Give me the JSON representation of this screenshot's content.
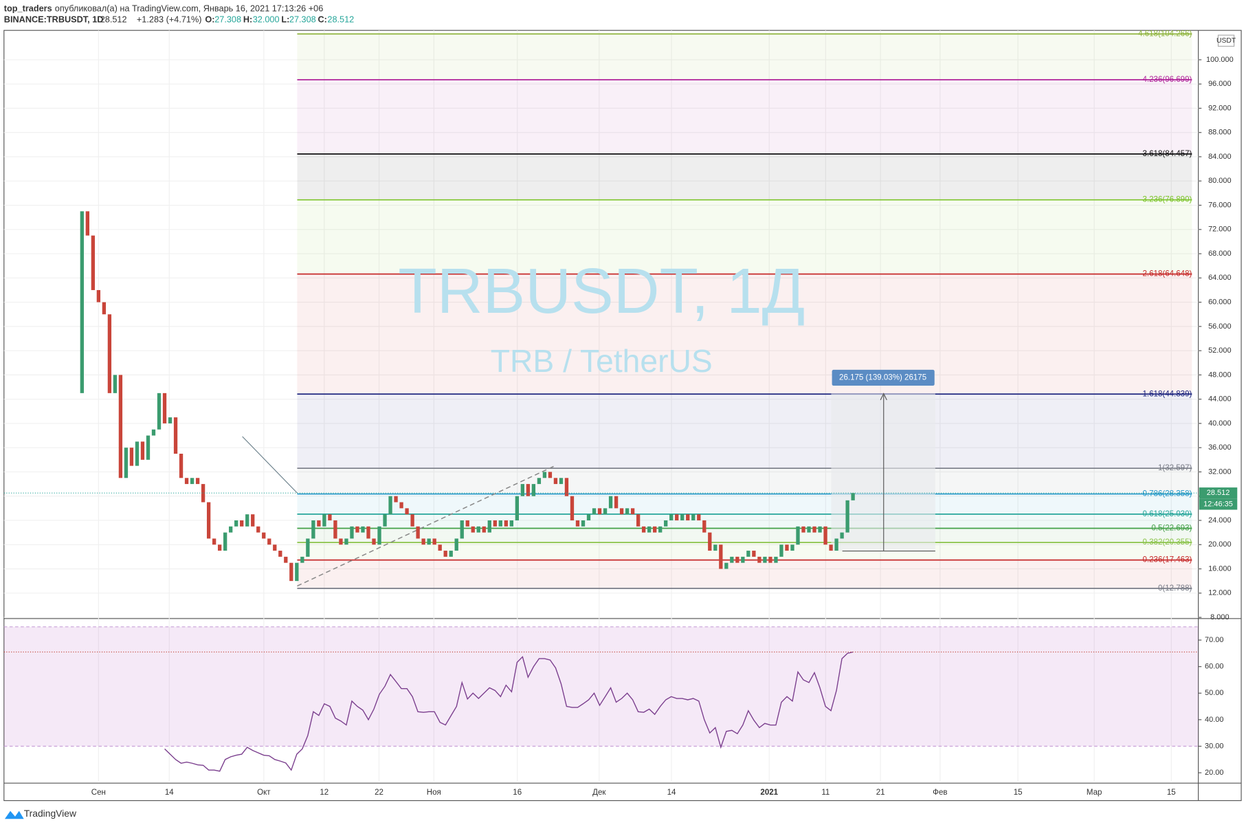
{
  "header": {
    "publisher": "top_traders",
    "published_text": "опубликовал(а) на TradingView.com, Январь 16, 2021 17:13:26 +06",
    "symbol": "BINANCE:TRBUSDT, 1D",
    "price": "28.512",
    "change": "+1.283 (+4.71%)",
    "o_label": "O:",
    "o": "27.308",
    "h_label": "H:",
    "h": "32.000",
    "l_label": "L:",
    "l": "27.308",
    "c_label": "C:",
    "c": "28.512"
  },
  "watermark": {
    "symbol": "TRBUSDT, 1Д",
    "description": "TRB / TetherUS"
  },
  "currency": "USDT",
  "price_label": "28.512",
  "countdown": "12:46:35",
  "measure_label": "26.175 (139.03%) 26175",
  "footer": "TradingView",
  "price_axis": {
    "ylim": [
      7.93,
      104.85
    ],
    "ticks": [
      {
        "value": 8,
        "label": "8.000"
      },
      {
        "value": 12,
        "label": "12.000"
      },
      {
        "value": 16,
        "label": "16.000"
      },
      {
        "value": 20,
        "label": "20.000"
      },
      {
        "value": 24,
        "label": "24.000"
      },
      {
        "value": 28,
        "label": "28.000"
      },
      {
        "value": 32,
        "label": "32.000"
      },
      {
        "value": 36,
        "label": "36.000"
      },
      {
        "value": 40,
        "label": "40.000"
      },
      {
        "value": 44,
        "label": "44.000"
      },
      {
        "value": 48,
        "label": "48.000"
      },
      {
        "value": 52,
        "label": "52.000"
      },
      {
        "value": 56,
        "label": "56.000"
      },
      {
        "value": 60,
        "label": "60.000"
      },
      {
        "value": 64,
        "label": "64.000"
      },
      {
        "value": 68,
        "label": "68.000"
      },
      {
        "value": 72,
        "label": "72.000"
      },
      {
        "value": 76,
        "label": "76.000"
      },
      {
        "value": 80,
        "label": "80.000"
      },
      {
        "value": 84,
        "label": "84.000"
      },
      {
        "value": 88,
        "label": "88.000"
      },
      {
        "value": 92,
        "label": "92.000"
      },
      {
        "value": 96,
        "label": "96.000"
      },
      {
        "value": 100,
        "label": "100.000"
      }
    ]
  },
  "fib_levels": [
    {
      "label": "0(12.788)",
      "value": 12.788,
      "color": "#787b86"
    },
    {
      "label": "0.236(17.463)",
      "value": 17.463,
      "color": "#c62828"
    },
    {
      "label": "0.382(20.355)",
      "value": 20.355,
      "color": "#8bc34a"
    },
    {
      "label": "0.5(22.693)",
      "value": 22.693,
      "color": "#43a047"
    },
    {
      "label": "0.618(25.030)",
      "value": 25.03,
      "color": "#26a69a"
    },
    {
      "label": "0.786(28.358)",
      "value": 28.358,
      "color": "#2196c8"
    },
    {
      "label": "1(32.597)",
      "value": 32.597,
      "color": "#787b86"
    },
    {
      "label": "1.618(44.839)",
      "value": 44.839,
      "color": "#1a237e"
    },
    {
      "label": "2.618(64.648)",
      "value": 64.648,
      "color": "#c62828"
    },
    {
      "label": "3.236(76.890)",
      "value": 76.89,
      "color": "#7cc42a"
    },
    {
      "label": "3.618(84.457)",
      "value": 84.457,
      "color": "#111111"
    },
    {
      "label": "4.236(96.699)",
      "value": 96.699,
      "color": "#b0249a"
    },
    {
      "label": "4.618(104.266)",
      "value": 104.266,
      "color": "#8db33a"
    }
  ],
  "candles": {
    "first_open": 45,
    "up_color": "#3b9c6f",
    "down_color": "#c9453a",
    "closes": [
      75,
      71,
      62,
      60,
      58,
      45,
      48,
      31,
      36,
      33,
      37,
      34,
      38,
      39,
      45,
      40,
      41,
      35,
      31,
      30,
      31,
      30,
      27,
      21,
      20,
      19,
      22,
      23,
      24,
      23,
      25,
      23,
      22,
      21,
      20,
      19,
      18,
      17,
      14,
      17,
      18,
      21,
      24,
      23,
      25,
      24,
      21,
      20,
      21,
      23,
      22,
      23,
      21,
      20,
      23,
      25,
      28,
      27,
      26,
      25,
      23,
      21,
      20,
      21,
      20,
      19,
      18,
      19,
      21,
      24,
      23,
      22,
      23,
      22,
      24,
      23,
      24,
      23,
      24,
      28,
      30,
      28,
      30,
      31,
      32,
      31,
      30,
      31,
      28,
      24,
      23,
      24,
      25,
      26,
      25,
      26,
      28,
      26,
      25,
      26,
      25,
      23,
      22,
      23,
      22,
      23,
      24,
      25,
      24,
      25,
      24,
      25,
      24,
      22,
      19,
      20,
      16,
      17,
      18,
      17,
      18,
      19,
      18,
      17,
      18,
      17,
      18,
      20,
      19,
      20,
      23,
      22,
      23,
      22,
      23,
      20,
      19,
      21,
      22,
      27.308,
      28.512
    ]
  },
  "rsi": {
    "ylim": [
      16.7,
      77.8
    ],
    "band": [
      30,
      75
    ],
    "color": "#7b3f8e",
    "ticks": [
      {
        "value": 20,
        "label": "20.00"
      },
      {
        "value": 30,
        "label": "30.00"
      },
      {
        "value": 40,
        "label": "40.00"
      },
      {
        "value": 50,
        "label": "50.00"
      },
      {
        "value": 60,
        "label": "60.00"
      },
      {
        "value": 70,
        "label": "70.00"
      }
    ],
    "values": [
      29,
      27,
      25,
      23.6,
      24,
      23.6,
      23,
      22.8,
      21,
      21,
      20.6,
      25,
      26,
      26.6,
      27,
      29.6,
      28.4,
      27.5,
      26.6,
      26.4,
      25,
      24.4,
      23.7,
      21,
      27,
      29,
      34,
      43,
      41.6,
      46,
      45,
      40.6,
      39.5,
      38,
      47,
      45,
      43.6,
      40,
      44,
      49.6,
      52.6,
      57,
      54.4,
      51.7,
      51.7,
      48.7,
      43,
      42.8,
      43,
      43,
      39,
      38,
      41.5,
      45,
      54,
      47.8,
      50,
      48,
      50,
      52,
      51,
      48.7,
      53,
      50.5,
      61.6,
      63.7,
      56,
      60,
      63,
      63,
      62.5,
      59.5,
      53.5,
      45,
      44.6,
      44.6,
      46,
      47.5,
      50,
      45.4,
      48.7,
      52,
      46.6,
      48,
      50,
      47.5,
      43,
      42.8,
      44,
      42,
      45,
      47.5,
      48.7,
      48,
      48,
      47.5,
      48,
      47,
      40,
      35,
      37,
      29.6,
      35.6,
      36,
      34.7,
      38,
      43.4,
      39.8,
      37,
      38.6,
      38,
      38,
      46.6,
      48.7,
      47,
      58,
      55,
      54,
      57.7,
      52,
      45,
      43.4,
      51,
      63,
      65,
      65.5
    ]
  },
  "time_axis": [
    "Сен",
    "14",
    "Окт",
    "12",
    "22",
    "Ноя",
    "16",
    "Дек",
    "14",
    "2021",
    "11",
    "21",
    "Фев",
    "15",
    "Мар",
    "15"
  ]
}
